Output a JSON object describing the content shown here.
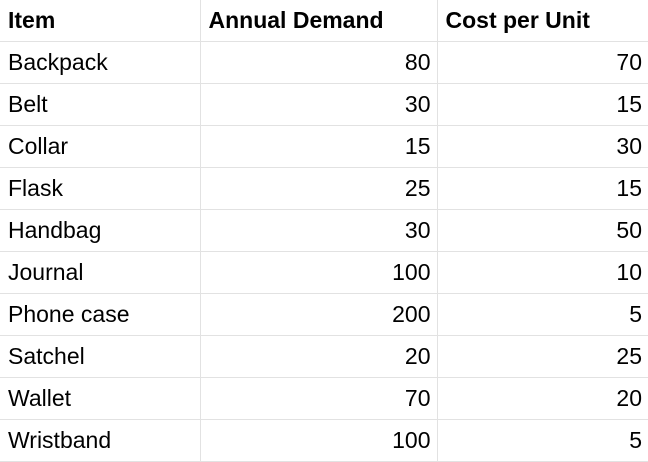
{
  "table": {
    "headers": [
      "Item",
      "Annual Demand",
      "Cost per Unit"
    ],
    "rows": [
      {
        "item": "Backpack",
        "demand": "80",
        "cost": "70"
      },
      {
        "item": "Belt",
        "demand": "30",
        "cost": "15"
      },
      {
        "item": "Collar",
        "demand": "15",
        "cost": "30"
      },
      {
        "item": "Flask",
        "demand": "25",
        "cost": "15"
      },
      {
        "item": "Handbag",
        "demand": "30",
        "cost": "50"
      },
      {
        "item": "Journal",
        "demand": "100",
        "cost": "10"
      },
      {
        "item": "Phone case",
        "demand": "200",
        "cost": "5"
      },
      {
        "item": "Satchel",
        "demand": "20",
        "cost": "25"
      },
      {
        "item": "Wallet",
        "demand": "70",
        "cost": "20"
      },
      {
        "item": "Wristband",
        "demand": "100",
        "cost": "5"
      }
    ]
  }
}
